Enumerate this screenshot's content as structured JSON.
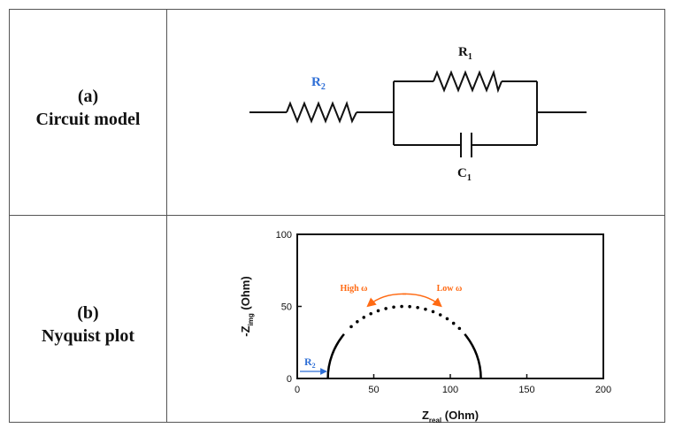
{
  "rows": [
    {
      "tag": "(a)",
      "title": "Circuit model"
    },
    {
      "tag": "(b)",
      "title": "Nyquist plot"
    }
  ],
  "circuit": {
    "r_series": {
      "name": "R",
      "sub": "2"
    },
    "r_parallel": {
      "name": "R",
      "sub": "1"
    },
    "capacitor": {
      "name": "C",
      "sub": "1"
    }
  },
  "chart_data": {
    "type": "scatter",
    "xlabel_main": "Z",
    "xlabel_sub": "real",
    "xlabel_unit": "(Ohm)",
    "ylabel_main": "-Z",
    "ylabel_sub": "img",
    "ylabel_unit": "(Ohm)",
    "xlim": [
      0,
      200
    ],
    "ylim": [
      0,
      100
    ],
    "xticks": [
      0,
      50,
      100,
      150,
      200
    ],
    "yticks": [
      0,
      50,
      100
    ],
    "semicircle": {
      "center_x": 70,
      "radius": 50,
      "start_x": 20,
      "end_x": 120
    },
    "annotations": {
      "high": "High ω",
      "low": "Low ω",
      "offset_label": {
        "name": "R",
        "sub": "2"
      }
    },
    "colors": {
      "curve": "#000000",
      "annotation": "#ff6a13",
      "offset": "#2f6fd6"
    }
  }
}
